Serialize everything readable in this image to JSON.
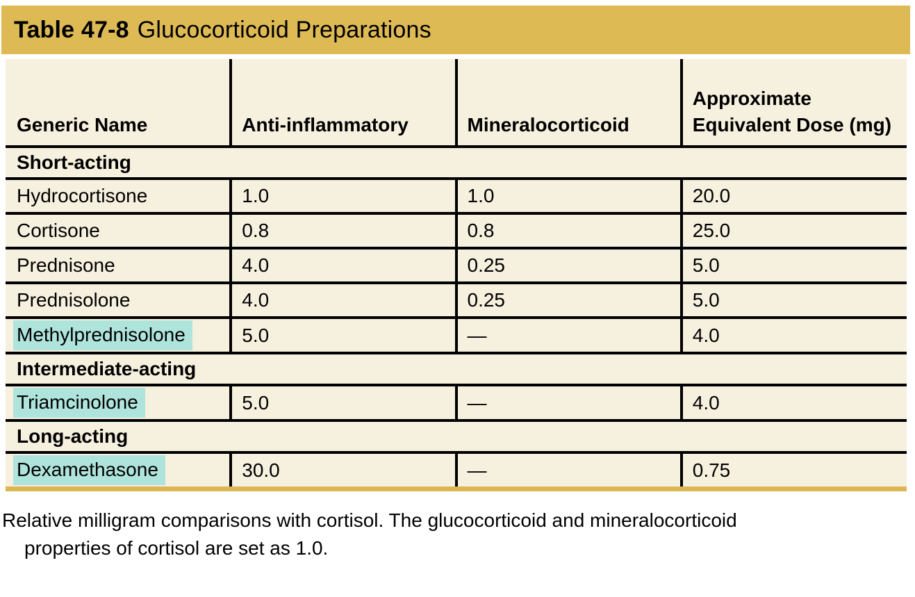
{
  "title": {
    "label": "Table 47-8",
    "text": "Glucocorticoid Preparations"
  },
  "table": {
    "columns": [
      "Generic Name",
      "Anti-inflammatory",
      "Mineralocorticoid",
      "Approximate Equivalent Dose (mg)"
    ],
    "sections": [
      {
        "label": "Short-acting",
        "rows": [
          {
            "name": "Hydrocortisone",
            "highlighted": false,
            "anti_inflammatory": "1.0",
            "mineralocorticoid": "1.0",
            "dose_mg": "20.0"
          },
          {
            "name": "Cortisone",
            "highlighted": false,
            "anti_inflammatory": "0.8",
            "mineralocorticoid": "0.8",
            "dose_mg": "25.0"
          },
          {
            "name": "Prednisone",
            "highlighted": false,
            "anti_inflammatory": "4.0",
            "mineralocorticoid": "0.25",
            "dose_mg": "5.0"
          },
          {
            "name": "Prednisolone",
            "highlighted": false,
            "anti_inflammatory": "4.0",
            "mineralocorticoid": "0.25",
            "dose_mg": "5.0"
          },
          {
            "name": "Methylprednisolone",
            "highlighted": true,
            "anti_inflammatory": "5.0",
            "mineralocorticoid": "—",
            "dose_mg": "4.0"
          }
        ]
      },
      {
        "label": "Intermediate-acting",
        "rows": [
          {
            "name": "Triamcinolone",
            "highlighted": true,
            "anti_inflammatory": "5.0",
            "mineralocorticoid": "—",
            "dose_mg": "4.0"
          }
        ]
      },
      {
        "label": "Long-acting",
        "rows": [
          {
            "name": "Dexamethasone",
            "highlighted": true,
            "anti_inflammatory": "30.0",
            "mineralocorticoid": "—",
            "dose_mg": "0.75"
          }
        ]
      }
    ]
  },
  "footnote": {
    "line1": "Relative milligram comparisons with cortisol. The glucocorticoid and mineralocorticoid",
    "line2": "properties of cortisol are set as 1.0."
  },
  "colors": {
    "title_bar": "#deba55",
    "table_bg": "#f6f0df",
    "highlight": "#afe4dc",
    "rule": "#000000",
    "bottom_rule": "#dcb652"
  }
}
